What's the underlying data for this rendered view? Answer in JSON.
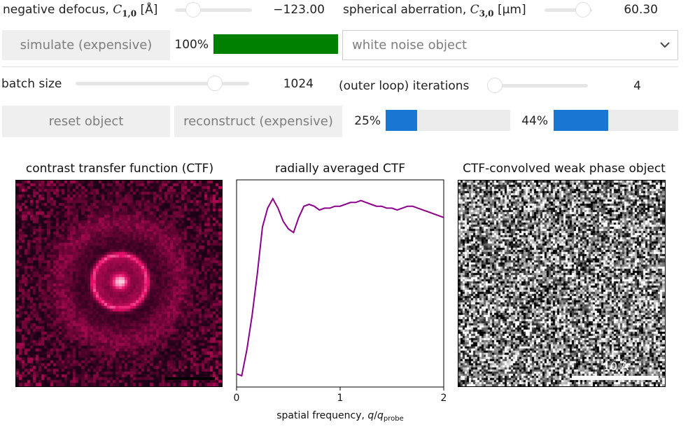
{
  "controls": {
    "defocus": {
      "label_prefix": "negative defocus,",
      "symbol": "C",
      "sub": "1,0",
      "unit": "[Å]",
      "value": "−123.00",
      "level": 0.2
    },
    "aberration": {
      "label_prefix": "spherical aberration,",
      "symbol": "C",
      "sub": "3,0",
      "unit": "[μm]",
      "value": "60.30",
      "level": 0.88
    },
    "simulate_button": "simulate (expensive)",
    "simulate_progress": {
      "text": "100%",
      "value": 100,
      "color": "#008000"
    },
    "object_select": {
      "value": "white noise object"
    },
    "batch_size": {
      "label": "batch size",
      "value": "1024",
      "level": 0.82
    },
    "iterations": {
      "label": "(outer loop) iterations",
      "value": "4",
      "level": 0.0
    },
    "reset_button": "reset object",
    "reconstruct_button": "reconstruct (expensive)",
    "progress_a": {
      "text": "25%",
      "value": 25,
      "color": "#1976d2"
    },
    "progress_b": {
      "text": "44%",
      "value": 44,
      "color": "#1976d2"
    }
  },
  "panels": {
    "ctf_image": {
      "title": "contrast transfer function (CTF)"
    },
    "ctf_plot": {
      "title": "radially averaged CTF"
    },
    "wpo_image": {
      "title": "CTF-convolved weak phase object",
      "scalebar_label": "10 Å"
    }
  },
  "chart_data": {
    "type": "line",
    "title": "radially averaged CTF",
    "xlabel": "spatial frequency, q/q_probe",
    "xlim": [
      0,
      2
    ],
    "xticks": [
      "0",
      "1",
      "2"
    ],
    "color": "#8b008b",
    "x": [
      0.0,
      0.05,
      0.1,
      0.15,
      0.2,
      0.25,
      0.3,
      0.35,
      0.4,
      0.45,
      0.5,
      0.55,
      0.6,
      0.65,
      0.7,
      0.75,
      0.8,
      0.85,
      0.9,
      0.95,
      1.0,
      1.05,
      1.1,
      1.15,
      1.2,
      1.25,
      1.3,
      1.35,
      1.4,
      1.45,
      1.5,
      1.55,
      1.6,
      1.65,
      1.7,
      1.75,
      1.8,
      1.85,
      1.9,
      1.95,
      2.0
    ],
    "y": [
      0.07,
      0.06,
      0.2,
      0.38,
      0.6,
      0.85,
      0.95,
      1.0,
      0.95,
      0.88,
      0.84,
      0.82,
      0.9,
      0.96,
      0.97,
      0.96,
      0.94,
      0.95,
      0.95,
      0.96,
      0.96,
      0.97,
      0.98,
      0.98,
      0.99,
      0.98,
      0.97,
      0.96,
      0.96,
      0.95,
      0.95,
      0.94,
      0.95,
      0.96,
      0.96,
      0.95,
      0.94,
      0.93,
      0.92,
      0.91,
      0.9
    ],
    "ylim": [
      0,
      1.1
    ]
  }
}
